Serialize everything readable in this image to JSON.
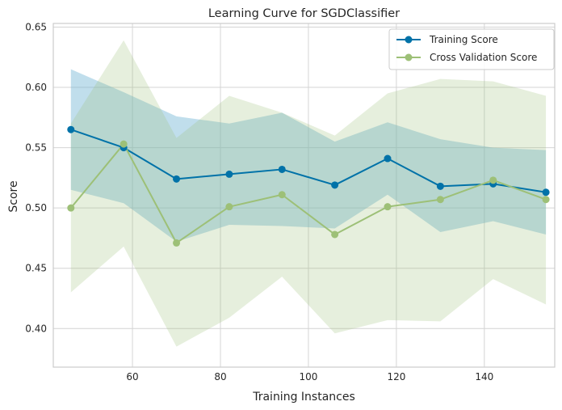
{
  "chart_data": {
    "type": "line",
    "title": "Learning Curve for SGDClassifier",
    "xlabel": "Training Instances",
    "ylabel": "Score",
    "xlim": [
      42,
      156
    ],
    "ylim": [
      0.368,
      0.653
    ],
    "xticks": [
      60,
      80,
      100,
      120,
      140
    ],
    "yticks": [
      0.4,
      0.45,
      0.5,
      0.55,
      0.6,
      0.65
    ],
    "ytick_labels": [
      "0.40",
      "0.45",
      "0.50",
      "0.55",
      "0.60",
      "0.65"
    ],
    "grid": true,
    "legend_position": "top-right",
    "x": [
      46,
      58,
      70,
      82,
      94,
      106,
      118,
      130,
      142,
      154
    ],
    "series": [
      {
        "name": "Training Score",
        "color": "#0072a8",
        "band_color": "#74b6d4",
        "values": [
          0.565,
          0.55,
          0.524,
          0.528,
          0.532,
          0.519,
          0.541,
          0.518,
          0.52,
          0.513
        ],
        "band_upper": [
          0.615,
          0.596,
          0.576,
          0.57,
          0.579,
          0.555,
          0.571,
          0.557,
          0.55,
          0.548
        ],
        "band_lower": [
          0.515,
          0.504,
          0.472,
          0.486,
          0.485,
          0.483,
          0.511,
          0.48,
          0.489,
          0.478
        ]
      },
      {
        "name": "Cross Validation Score",
        "color": "#9dc077",
        "band_color": "#9dc077",
        "values": [
          0.5,
          0.553,
          0.471,
          0.501,
          0.511,
          0.478,
          0.501,
          0.507,
          0.523,
          0.507
        ],
        "band_upper": [
          0.57,
          0.639,
          0.558,
          0.593,
          0.579,
          0.56,
          0.595,
          0.607,
          0.605,
          0.593
        ],
        "band_lower": [
          0.43,
          0.468,
          0.385,
          0.409,
          0.443,
          0.396,
          0.407,
          0.406,
          0.441,
          0.42
        ]
      }
    ]
  }
}
